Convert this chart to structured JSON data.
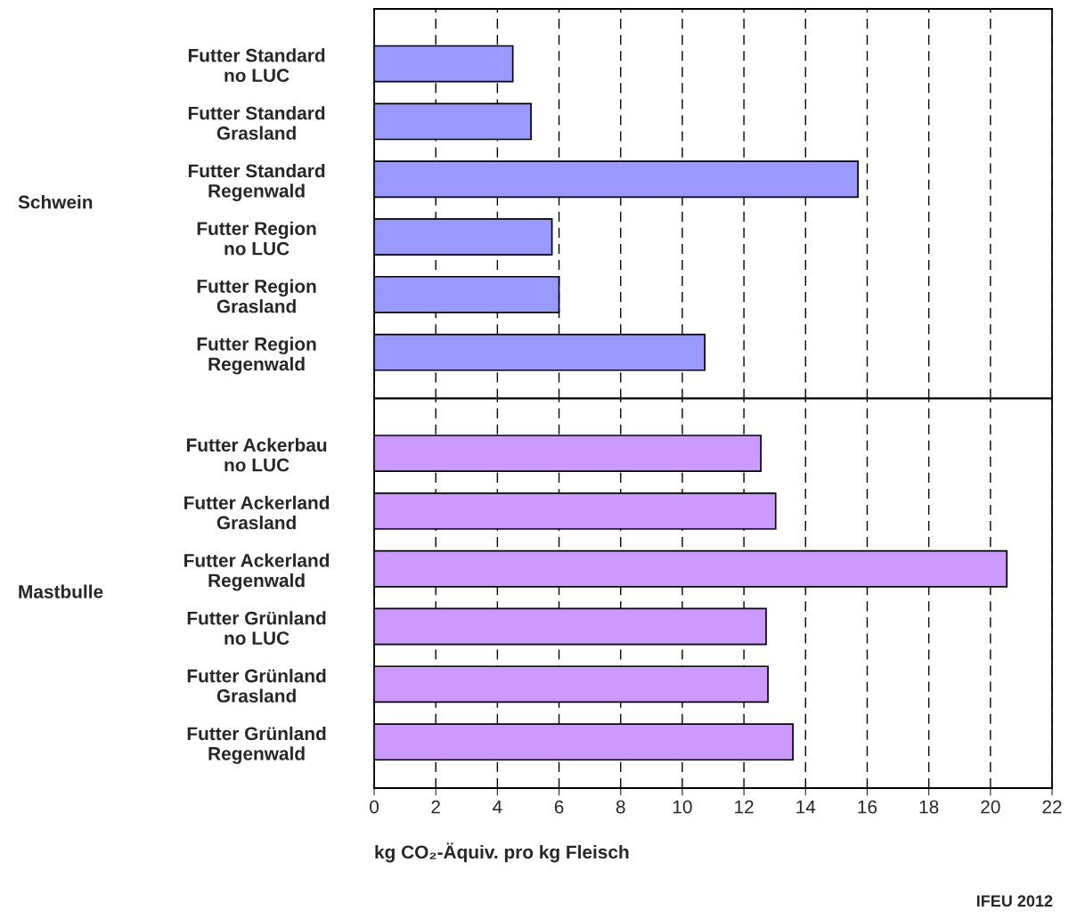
{
  "chart_data": [
    {
      "type": "bar",
      "orientation": "horizontal",
      "ylabel": "Schwein",
      "tick_labels": "y",
      "grid": "x",
      "color": "#9999ff",
      "categories": [
        "Futter Standard\nno LUC",
        "Futter Standard\nGrasland",
        "Futter Standard\nRegenwald",
        "Futter Region\nno LUC",
        "Futter Region\nGrasland",
        "Futter Region\nRegenwald"
      ],
      "values": [
        4.5,
        5.09,
        15.7,
        5.77,
        6.0,
        10.73
      ],
      "xlim": [
        0,
        22
      ],
      "xticks": [
        0,
        2,
        4,
        6,
        8,
        10,
        12,
        14,
        16,
        18,
        20,
        22
      ]
    },
    {
      "type": "bar",
      "orientation": "horizontal",
      "ylabel": "Mastbulle",
      "grid": "x",
      "color": "#cc99ff",
      "xlabel": "kg CO₂-Äquiv. pro kg Fleisch",
      "categories": [
        "Futter Ackerbau\nno LUC",
        "Futter Ackerland\nGrasland",
        "Futter Ackerland\nRegenwald",
        "Futter Grünland\nno LUC",
        "Futter Grünland\nGrasland",
        "Futter Grünland\nRegenwald"
      ],
      "values": [
        12.55,
        13.03,
        20.53,
        12.72,
        12.78,
        13.59
      ],
      "xlim": [
        0,
        22
      ],
      "xticks": [
        0,
        2,
        4,
        6,
        8,
        10,
        12,
        14,
        16,
        18,
        20,
        22
      ],
      "annotations": [
        "IFEU 2012"
      ]
    }
  ]
}
